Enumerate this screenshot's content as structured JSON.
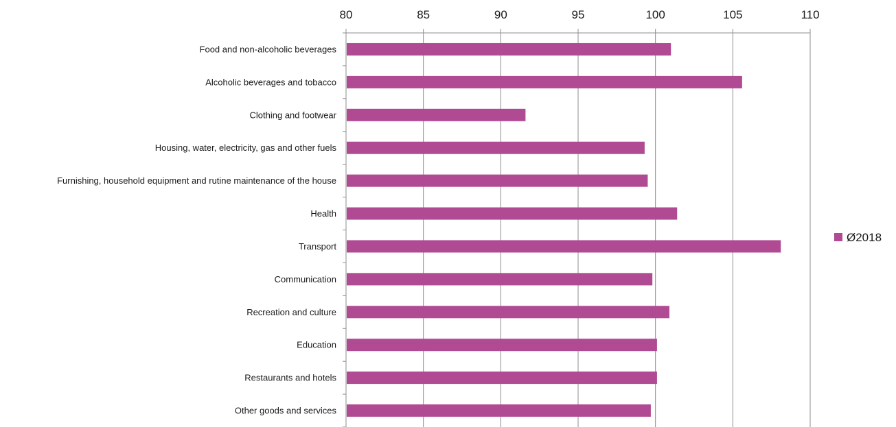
{
  "chart_data": {
    "type": "bar",
    "orientation": "horizontal",
    "title": "",
    "xlabel": "",
    "ylabel": "",
    "x_axis_position": "top",
    "xlim": [
      80,
      110
    ],
    "xticks": [
      80,
      85,
      90,
      95,
      100,
      105,
      110
    ],
    "grid": true,
    "legend_position": "right",
    "categories": [
      "Food and non-alcoholic beverages",
      "Alcoholic beverages and tobacco",
      "Clothing and footwear",
      "Housing, water, electricity, gas and other fuels",
      "Furnishing, household equipment and rutine maintenance of the house",
      "Health",
      "Transport",
      "Communication",
      "Recreation and culture",
      "Education",
      "Restaurants and hotels",
      "Other goods and services"
    ],
    "series": [
      {
        "name": "Ø2018",
        "color": "#b04a93",
        "values": [
          101.0,
          105.6,
          91.6,
          99.3,
          99.5,
          101.4,
          108.1,
          99.8,
          100.9,
          100.1,
          100.1,
          99.7
        ]
      }
    ]
  }
}
